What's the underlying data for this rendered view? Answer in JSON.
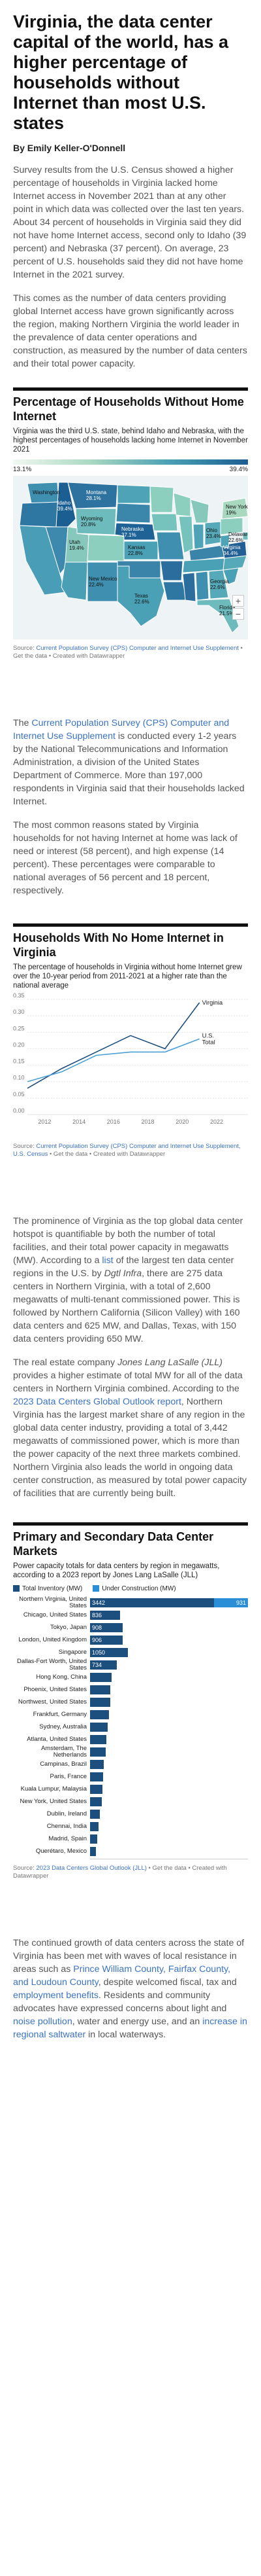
{
  "article": {
    "title": "Virginia, the data center capital of the world, has a higher percentage of households without Internet than most U.S. states",
    "byline": "By Emily Keller-O'Donnell",
    "intro_p1": "Survey results from the U.S. Census showed a higher percentage of households in Virginia lacked home Internet access in November 2021 than at any other point in which data was collected over the last ten years. About 34 percent of households in Virginia said they did not have home Internet access, second only to Idaho (39 percent) and Nebraska (37 percent). On average, 23 percent of U.S. households said they did not have home Internet in the 2021 survey.",
    "intro_p2": "This comes as the number of data centers providing global Internet access have grown significantly across the region, making Northern Virginia the world leader in the prevalence of data center operations and construction, as measured by the number of data centers and their total power capacity.",
    "cps_p1_link": "Current Population Survey (CPS) Computer and Internet Use Supplement",
    "cps_p1_pre": "The ",
    "cps_p1_rest": " is conducted every 1-2 years by the National Telecommunications and Information Administration, a division of the United States Department of Commerce. More than 197,000 respondents in Virginia said that their households lacked Internet.",
    "cps_p2": "The most common reasons stated by Virginia households for not having Internet at home was lack of need or interest (58 percent), and high expense (14 percent). These percentages were comparable to national averages of 56 percent and 18 percent, respectively.",
    "prom_p_pre": "The prominence of Virginia as the top global data center hotspot is quantifiable by both the number of total facilities, and their total power capacity in megawatts (MW). According to a ",
    "prom_p_link": "list",
    "prom_p_mid": " of the largest ten data center regions in the U.S. by ",
    "prom_p_italic": "Dgtl Infra",
    "prom_p_rest": ", there are 275 data centers in Northern Virginia, with a total of 2,600 megawatts of multi-tenant commissioned power. This is followed by Northern California (Silicon Valley) with 160 data centers and 625 MW, and Dallas, Texas, with 150 data centers providing 650 MW.",
    "jll_p_pre": "The real estate company ",
    "jll_p_italic": "Jones Lang LaSalle (JLL)",
    "jll_p_mid": " provides a higher estimate of total MW for all of the data centers in Northern Virginia combined. According to the ",
    "jll_p_link": "2023 Data Centers Global Outlook report",
    "jll_p_rest": ", Northern Virginia has the largest market share of any region in the global data center industry, providing a total of 3,442 megawatts of commissioned power, which is more than the power capacity of the next three markets combined. Northern Virginia also leads the world in ongoing data center construction, as measured by total power capacity of facilities that are currently being built.",
    "final_p_pre": "The continued growth of data centers across the state of Virginia has been met with waves of local resistance in areas such as ",
    "final_p_link1": "Prince William County, Fairfax County, and Loudoun County",
    "final_p_mid1": ", despite welcomed fiscal, tax and ",
    "final_p_link2": "employment benefits",
    "final_p_mid2": ". Residents and community advocates have expressed concerns about light and ",
    "final_p_link3": "noise pollution",
    "final_p_mid3": ", water and energy use, and an ",
    "final_p_link4": "increase in regional saltwater",
    "final_p_rest": " in local waterways."
  },
  "map_section": {
    "title": "Percentage of Households Without Home Internet",
    "desc": "Virginia was the third U.S. state, behind Idaho and Nebraska, with the highest percentages of households lacking home Internet in November 2021",
    "legend_min": "13.1%",
    "legend_max": "39.4%",
    "zoom_in": "+",
    "zoom_out": "−",
    "labels": [
      {
        "name": "Montana",
        "value": "28.1%"
      },
      {
        "name": "Idaho",
        "value": "39.4%"
      },
      {
        "name": "Wyoming",
        "value": "20.8%"
      },
      {
        "name": "Nebraska",
        "value": "37.1%"
      },
      {
        "name": "Kansas",
        "value": "22.8%"
      },
      {
        "name": "Utah",
        "value": "19.4%"
      },
      {
        "name": "New Mexico",
        "value": "22.4%"
      },
      {
        "name": "Texas",
        "value": "22.6%"
      },
      {
        "name": "Ohio",
        "value": "23.4%"
      },
      {
        "name": "New York",
        "value": "19%"
      },
      {
        "name": "Delaware",
        "value": "22.6%"
      },
      {
        "name": "Virginia",
        "value": "34.4%"
      },
      {
        "name": "Georgia",
        "value": "22.6%"
      },
      {
        "name": "Florida",
        "value": "21.5%"
      },
      {
        "name": "Washington",
        "value": ""
      }
    ],
    "source_pre": "Source: ",
    "source_link": "Current Population Survey (CPS) Computer and Internet Use Supplement",
    "source_rest": " • Get the data • Created with Datawrapper"
  },
  "line_section": {
    "title": "Households With No Home Internet in Virginia",
    "desc": "The percentage of households in Virginia without home Internet grew over the 10-year period from 2011-2021 at a higher rate than the national average",
    "source_pre": "Source: ",
    "source_link": "Current Population Survey (CPS) Computer and Internet Use Supplement, U.S. Census",
    "source_rest": " • Get the data • Created with Datawrapper"
  },
  "bar_section": {
    "title": "Primary and Secondary Data Center Markets",
    "desc": "Power capacity totals for data centers by region in megawatts, according to a 2023 report by Jones Lang LaSalle (JLL)",
    "legend_total": "Total Inventory (MW)",
    "legend_uc": "Under Construction (MW)",
    "source_pre": "Source: ",
    "source_link": "2023 Data Centers Global Outlook (JLL)",
    "source_rest": " • Get the data • Created with Datawrapper"
  },
  "colors": {
    "total": "#1c4f7d",
    "under_construction": "#2a8fd6",
    "virginia_line": "#1c4f7d",
    "us_line": "#4a9fd9"
  },
  "chart_data": [
    {
      "type": "line",
      "title": "Households With No Home Internet in Virginia",
      "xlabel": "",
      "ylabel": "",
      "x": [
        2011,
        2013,
        2015,
        2017,
        2019,
        2021
      ],
      "x_ticks": [
        "2012",
        "2014",
        "2016",
        "2018",
        "2020",
        "2022"
      ],
      "y_ticks": [
        "0.00",
        "0.05",
        "0.10",
        "0.15",
        "0.20",
        "0.25",
        "0.30",
        "0.35"
      ],
      "ylim": [
        0,
        0.35
      ],
      "xlim": [
        2011,
        2022
      ],
      "series": [
        {
          "name": "Virginia",
          "values": [
            0.08,
            0.14,
            0.19,
            0.24,
            0.2,
            0.34
          ]
        },
        {
          "name": "U.S. Total",
          "values": [
            0.1,
            0.13,
            0.18,
            0.19,
            0.19,
            0.23
          ]
        }
      ]
    },
    {
      "type": "bar",
      "title": "Primary and Secondary Data Center Markets",
      "xlabel": "",
      "ylabel": "",
      "categories": [
        "Northern Virginia, United States",
        "Chicago, United States",
        "Tokyo, Japan",
        "London, United Kingdom",
        "Singapore",
        "Dallas-Fort Worth, United States",
        "Hong Kong, China",
        "Phoenix, United States",
        "Northwest, United States",
        "Frankfurt, Germany",
        "Sydney, Australia",
        "Atlanta, United States",
        "Amsterdam, The Netherlands",
        "Campinas, Brazil",
        "Paris, France",
        "Kuala Lumpur, Malaysia",
        "New York, United States",
        "Dublin, Ireland",
        "Chennai, India",
        "Madrid, Spain",
        "Querétaro, Mexico"
      ],
      "series": [
        {
          "name": "Total Inventory (MW)",
          "values": [
            3442,
            836,
            908,
            906,
            1050,
            734,
            600,
            560,
            560,
            520,
            480,
            460,
            440,
            380,
            360,
            340,
            320,
            280,
            240,
            200,
            160
          ]
        },
        {
          "name": "Under Construction (MW)",
          "values": [
            931,
            0,
            0,
            0,
            0,
            0,
            0,
            0,
            0,
            0,
            0,
            0,
            0,
            0,
            0,
            0,
            0,
            0,
            0,
            0,
            0
          ]
        }
      ],
      "value_labels": [
        "3442",
        "836",
        "908",
        "906",
        "1050",
        "734"
      ],
      "uc_labels": [
        "931"
      ]
    }
  ]
}
